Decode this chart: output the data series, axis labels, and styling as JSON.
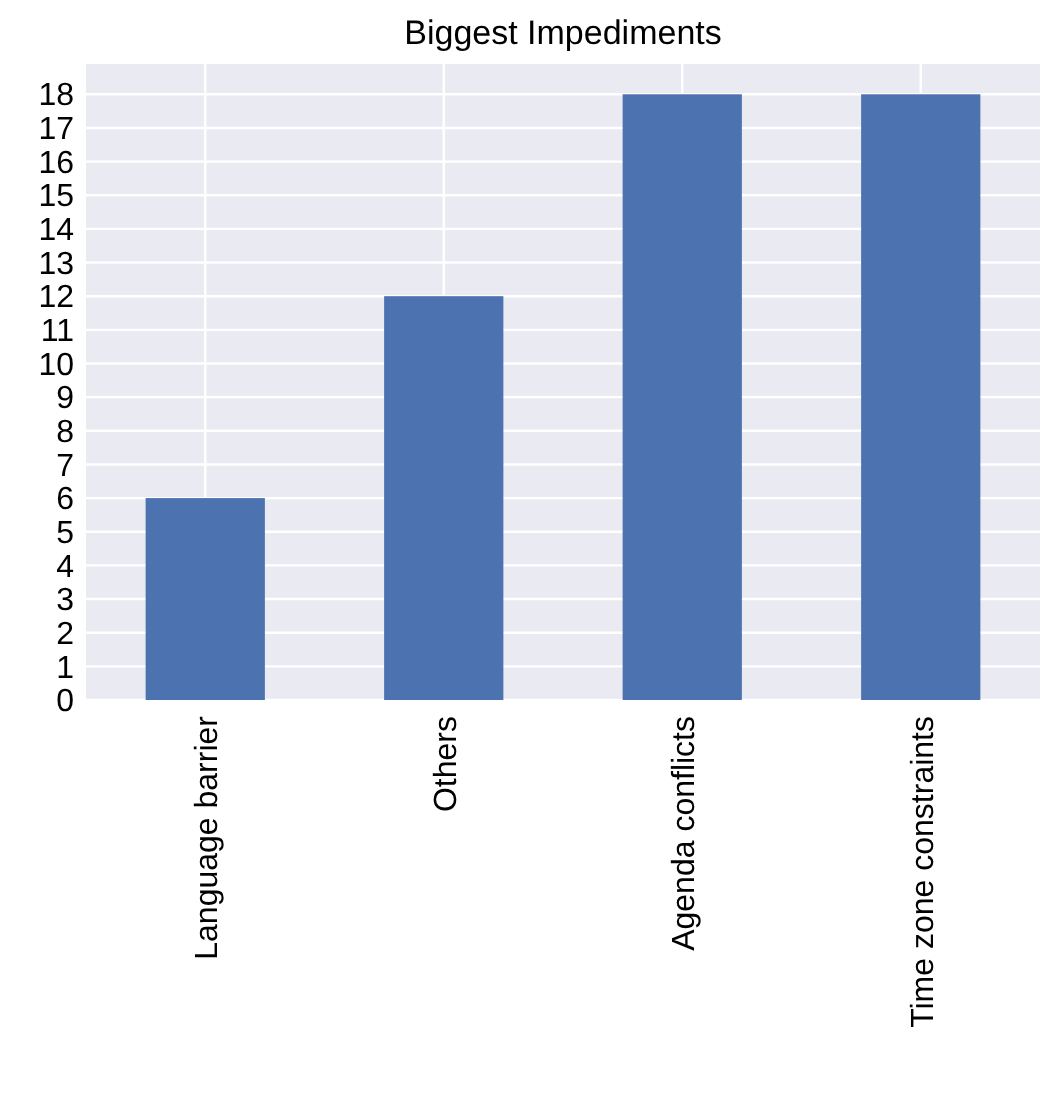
{
  "chart_data": {
    "type": "bar",
    "title": "Biggest Impediments",
    "categories": [
      "Language barrier",
      "Others",
      "Agenda conflicts",
      "Time zone constraints"
    ],
    "values": [
      6,
      12,
      18,
      18
    ],
    "color": "#4c72b0",
    "ylim": [
      0,
      18.9
    ],
    "yticks": [
      0,
      1,
      2,
      3,
      4,
      5,
      6,
      7,
      8,
      9,
      10,
      11,
      12,
      13,
      14,
      15,
      16,
      17,
      18
    ],
    "grid": true
  }
}
